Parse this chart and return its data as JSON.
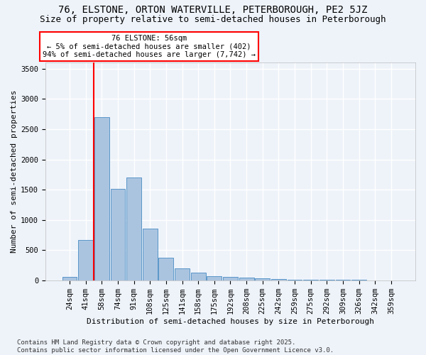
{
  "title_line1": "76, ELSTONE, ORTON WATERVILLE, PETERBOROUGH, PE2 5JZ",
  "title_line2": "Size of property relative to semi-detached houses in Peterborough",
  "xlabel": "Distribution of semi-detached houses by size in Peterborough",
  "ylabel": "Number of semi-detached properties",
  "footnote": "Contains HM Land Registry data © Crown copyright and database right 2025.\nContains public sector information licensed under the Open Government Licence v3.0.",
  "categories": [
    "24sqm",
    "41sqm",
    "58sqm",
    "74sqm",
    "91sqm",
    "108sqm",
    "125sqm",
    "141sqm",
    "158sqm",
    "175sqm",
    "192sqm",
    "208sqm",
    "225sqm",
    "242sqm",
    "259sqm",
    "275sqm",
    "292sqm",
    "309sqm",
    "326sqm",
    "342sqm",
    "359sqm"
  ],
  "values": [
    50,
    665,
    2700,
    1510,
    1700,
    850,
    375,
    195,
    130,
    70,
    55,
    40,
    30,
    22,
    10,
    8,
    5,
    4,
    3,
    2,
    2
  ],
  "bar_color": "#aac4e0",
  "bar_edge_color": "#5a96c8",
  "vline_x": 1.5,
  "vline_color": "red",
  "annotation_text": "76 ELSTONE: 56sqm\n← 5% of semi-detached houses are smaller (402)\n94% of semi-detached houses are larger (7,742) →",
  "annotation_box_color": "white",
  "annotation_box_edge_color": "red",
  "ylim": [
    0,
    3600
  ],
  "yticks": [
    0,
    500,
    1000,
    1500,
    2000,
    2500,
    3000,
    3500
  ],
  "bg_color": "#eef3fa",
  "grid_color": "#ffffff",
  "title_fontsize": 10,
  "subtitle_fontsize": 9,
  "axis_label_fontsize": 8,
  "tick_fontsize": 7.5,
  "footnote_fontsize": 6.5
}
